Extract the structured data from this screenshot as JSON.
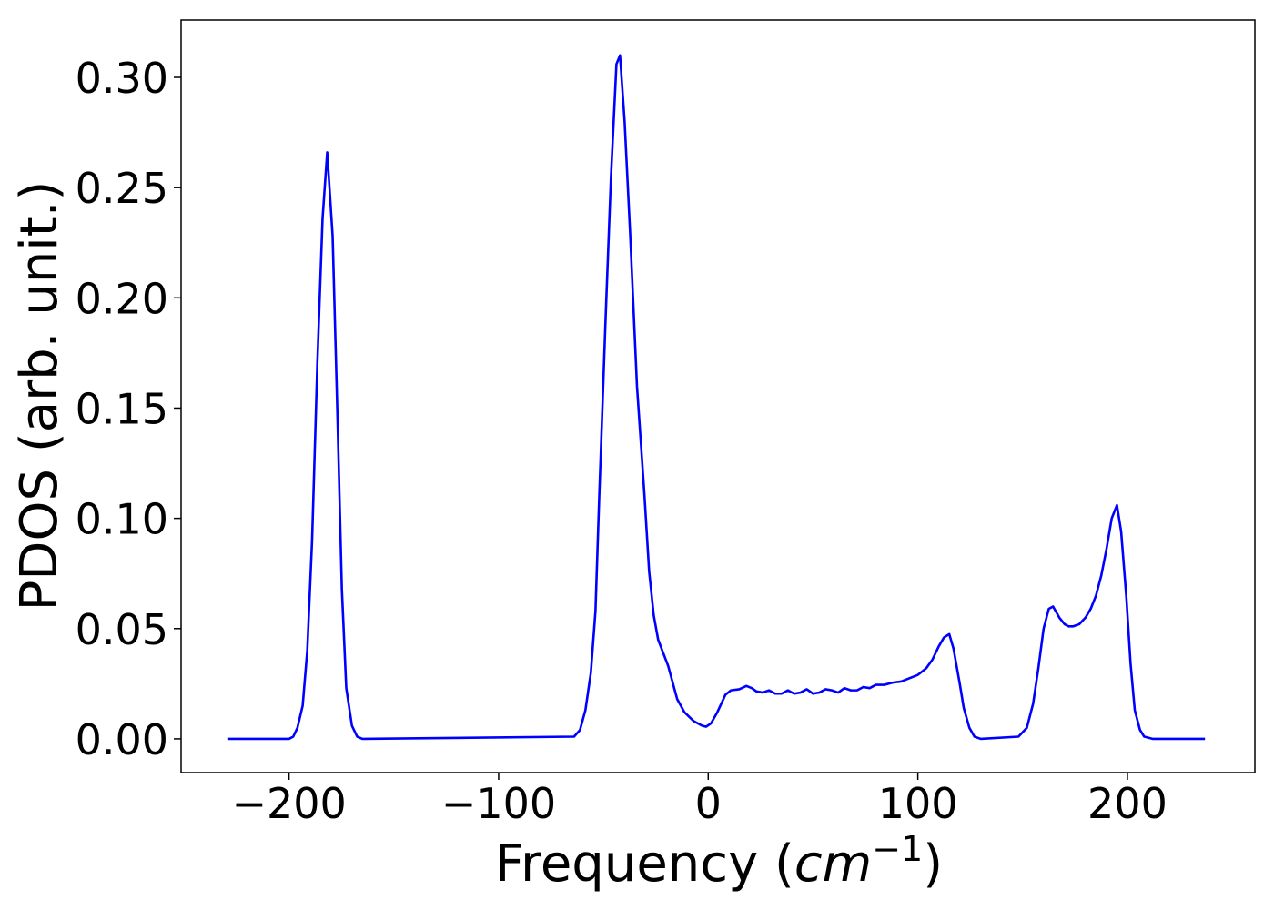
{
  "chart_data": {
    "type": "line",
    "xlabel_parts": [
      "Frequency (",
      "cm",
      "−1",
      ")"
    ],
    "ylabel": "PDOS (arb. unit.)",
    "xlim": [
      -251.5,
      260.8
    ],
    "ylim": [
      -0.0153,
      0.326
    ],
    "xticks": [
      {
        "value": -200,
        "label": "−200"
      },
      {
        "value": -100,
        "label": "−100"
      },
      0,
      100,
      200
    ],
    "yticks": [
      {
        "value": 0,
        "label": "0.00"
      },
      {
        "value": 0.05,
        "label": "0.05"
      },
      {
        "value": 0.1,
        "label": "0.10"
      },
      {
        "value": 0.15,
        "label": "0.15"
      },
      {
        "value": 0.2,
        "label": "0.20"
      },
      {
        "value": 0.25,
        "label": "0.25"
      },
      {
        "value": 0.3,
        "label": "0.30"
      }
    ],
    "x": [
      -229,
      -200,
      -198,
      -196,
      -193.5,
      -191.3,
      -189,
      -186.5,
      -184,
      -181.8,
      -179.2,
      -177,
      -174.8,
      -172.7,
      -170,
      -167.5,
      -165,
      -64,
      -61.2,
      -58.6,
      -56,
      -53.8,
      -52,
      -49,
      -46.4,
      -43.8,
      -42.1,
      -39.9,
      -37.3,
      -34,
      -30.4,
      -28.2,
      -26,
      -23.9,
      -19.1,
      -14.8,
      -11.3,
      -6.9,
      -3,
      -1,
      1.3,
      4.3,
      8.2,
      10.8,
      14.8,
      18.2,
      20.8,
      23,
      26,
      29,
      32,
      35,
      38,
      41,
      44,
      47,
      50,
      53,
      56,
      59,
      62,
      65,
      68,
      71,
      74,
      77,
      80,
      84,
      88,
      92,
      96,
      100,
      104,
      107,
      110,
      112.5,
      115,
      117,
      120,
      121.9,
      124.6,
      127,
      130,
      148,
      152,
      155,
      157.5,
      160,
      162.5,
      164.5,
      167.5,
      170,
      172,
      174,
      177,
      180,
      182.5,
      185,
      187.5,
      190,
      192.5,
      195,
      197,
      199.5,
      201.5,
      203.5,
      206,
      208,
      212,
      237
    ],
    "series": [
      {
        "color": "#0000ff",
        "values": [
          0,
          0,
          0.001,
          0.005,
          0.015,
          0.04,
          0.09,
          0.17,
          0.236,
          0.266,
          0.228,
          0.15,
          0.068,
          0.023,
          0.006,
          0.001,
          0,
          0.001,
          0.004,
          0.013,
          0.03,
          0.058,
          0.11,
          0.19,
          0.255,
          0.306,
          0.31,
          0.28,
          0.23,
          0.16,
          0.11,
          0.076,
          0.056,
          0.045,
          0.033,
          0.018,
          0.012,
          0.008,
          0.006,
          0.0055,
          0.007,
          0.012,
          0.02,
          0.022,
          0.0225,
          0.024,
          0.023,
          0.0215,
          0.021,
          0.022,
          0.0205,
          0.0205,
          0.022,
          0.0205,
          0.021,
          0.0225,
          0.0205,
          0.021,
          0.0225,
          0.022,
          0.021,
          0.023,
          0.022,
          0.022,
          0.0235,
          0.023,
          0.0245,
          0.0245,
          0.0255,
          0.026,
          0.0275,
          0.029,
          0.032,
          0.036,
          0.042,
          0.046,
          0.0475,
          0.041,
          0.025,
          0.014,
          0.005,
          0.001,
          0,
          0.001,
          0.005,
          0.016,
          0.032,
          0.05,
          0.059,
          0.06,
          0.055,
          0.052,
          0.051,
          0.051,
          0.052,
          0.055,
          0.059,
          0.065,
          0.074,
          0.086,
          0.1,
          0.106,
          0.094,
          0.064,
          0.034,
          0.013,
          0.004,
          0.001,
          0,
          0
        ]
      }
    ]
  }
}
